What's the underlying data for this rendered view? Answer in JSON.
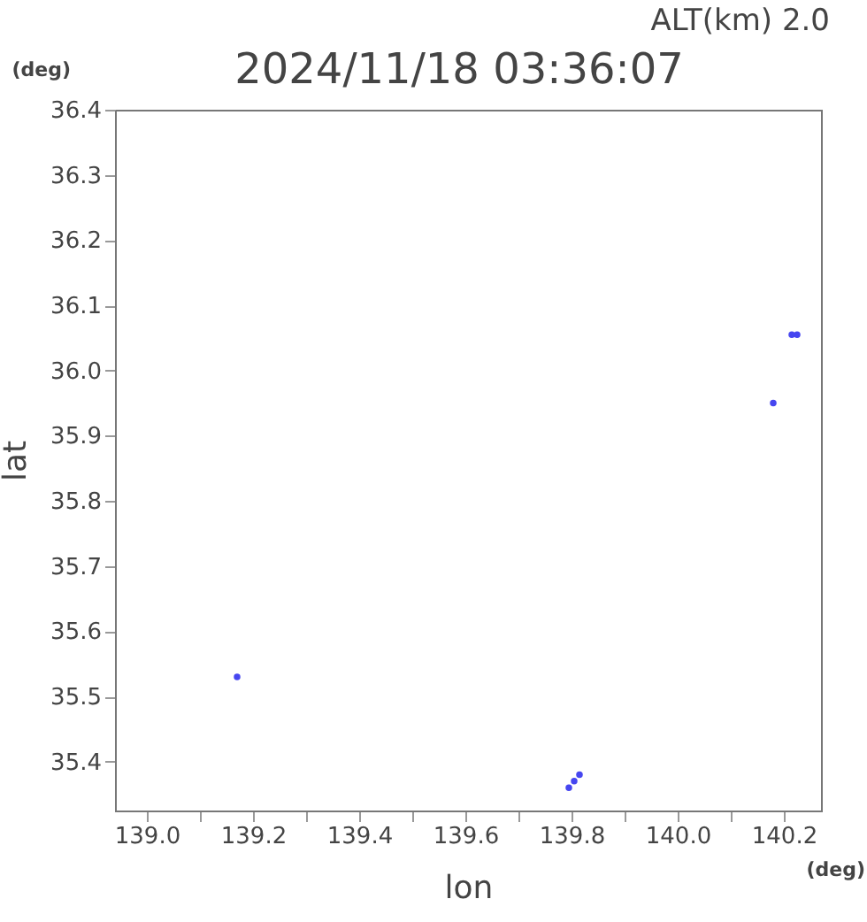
{
  "chart_data": {
    "type": "scatter",
    "title": "2024/11/18 03:36:07",
    "xlabel": "lon",
    "ylabel": "lat",
    "annotations": [
      "ALT(km) 2.0",
      "(deg)",
      "(deg)"
    ],
    "series": [
      {
        "color": "#4646f0",
        "x": [
          139.17,
          139.795,
          139.805,
          139.815,
          140.18,
          140.215,
          140.225
        ],
        "values": [
          35.53,
          35.36,
          35.37,
          35.38,
          35.95,
          36.055,
          36.055
        ]
      }
    ],
    "xlim": [
      138.94,
      140.27
    ],
    "ylim": [
      35.325,
      36.4
    ],
    "xticks": [
      {
        "value": 139,
        "label": "139.0"
      },
      {
        "value": 139.1,
        "label": null
      },
      139.2,
      {
        "value": 139.3,
        "label": null
      },
      139.4,
      {
        "value": 139.5,
        "label": null
      },
      139.6,
      {
        "value": 139.7,
        "label": null
      },
      139.8,
      {
        "value": 139.9,
        "label": null
      },
      {
        "value": 140,
        "label": "140.0"
      },
      {
        "value": 140.1,
        "label": null
      },
      140.2
    ],
    "yticks": [
      35.4,
      35.5,
      35.6,
      35.7,
      35.8,
      35.9,
      {
        "value": 36,
        "label": "36.0"
      },
      36.1,
      36.2,
      36.3,
      36.4
    ],
    "grid": false,
    "marker": "circle",
    "legend": false
  }
}
